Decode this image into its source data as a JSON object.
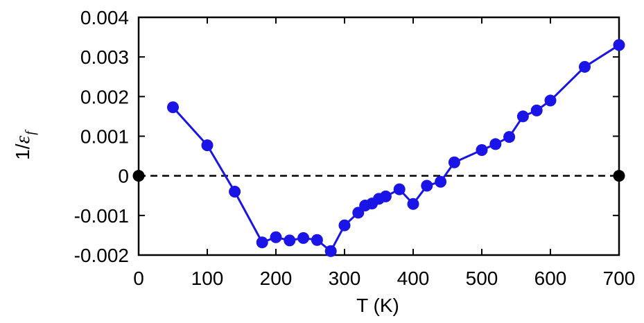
{
  "chart_data": {
    "type": "line",
    "xlabel": "T (K)",
    "ylabel": {
      "prefix": "1/",
      "symbol": "ε",
      "subscript": "f"
    },
    "xlim": [
      0,
      700
    ],
    "ylim": [
      -0.002,
      0.004
    ],
    "xticks": [
      0,
      100,
      200,
      300,
      400,
      500,
      600,
      700
    ],
    "yticks": [
      -0.002,
      -0.001,
      0,
      0.001,
      0.002,
      0.003,
      0.004
    ],
    "xtick_labels": [
      "0",
      "100",
      "200",
      "300",
      "400",
      "500",
      "600",
      "700"
    ],
    "ytick_labels": [
      "-0.002",
      "-0.001",
      "0",
      "0.001",
      "0.002",
      "0.003",
      "0.004"
    ],
    "grid": false,
    "series": [
      {
        "color": "#1a14e6",
        "marker": "circle",
        "x": [
          50,
          100,
          140,
          180,
          200,
          220,
          240,
          260,
          280,
          300,
          320,
          330,
          340,
          350,
          360,
          380,
          400,
          420,
          440,
          460,
          500,
          520,
          540,
          560,
          580,
          600,
          650,
          700
        ],
        "y": [
          0.00173,
          0.00077,
          -0.0004,
          -0.00168,
          -0.00155,
          -0.00163,
          -0.00157,
          -0.00162,
          -0.0019,
          -0.00125,
          -0.00093,
          -0.00075,
          -0.0007,
          -0.00058,
          -0.00052,
          -0.00034,
          -0.00071,
          -0.00025,
          -0.00015,
          0.00034,
          0.00065,
          0.0008,
          0.00098,
          0.0015,
          0.00165,
          0.0019,
          0.00275,
          0.0033
        ]
      }
    ],
    "reference_line": {
      "y": 0,
      "style": "dashed",
      "color": "#000000",
      "endpoints_x": [
        0,
        700
      ]
    }
  }
}
